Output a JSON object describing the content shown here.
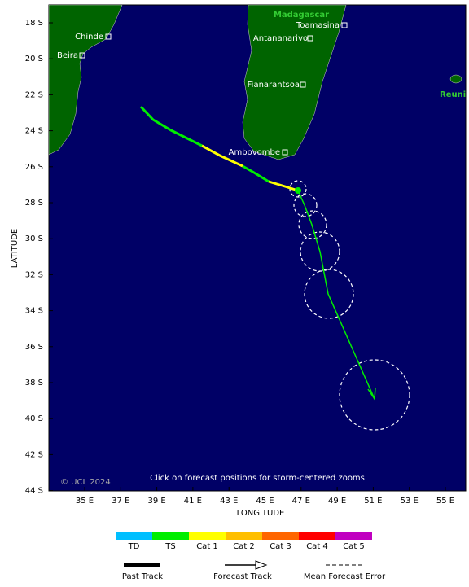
{
  "map": {
    "x_label": "LONGITUDE",
    "y_label": "LATITUDE",
    "x_ticks": [
      "35 E",
      "37 E",
      "39 E",
      "41 E",
      "43 E",
      "45 E",
      "47 E",
      "49 E",
      "51 E",
      "53 E",
      "55 E"
    ],
    "y_ticks": [
      "18 S",
      "20 S",
      "22 S",
      "24 S",
      "26 S",
      "28 S",
      "30 S",
      "32 S",
      "34 S",
      "36 S",
      "38 S",
      "40 S",
      "42 S",
      "44 S"
    ],
    "regions": [
      "Madagascar",
      "Reuni"
    ],
    "places": [
      "Chinde",
      "Beira",
      "Toamasina",
      "Antananarivo",
      "Fianarantsoa",
      "Ambovombe"
    ],
    "copyright": "© UCL 2024",
    "note": "Click on forecast positions for storm-centered zooms",
    "intensity_legend": [
      "TD",
      "TS",
      "Cat 1",
      "Cat 2",
      "Cat 3",
      "Cat 4",
      "Cat 5"
    ],
    "track_legend": [
      "Past Track",
      "Forecast Track",
      "Mean Forecast Error"
    ]
  }
}
